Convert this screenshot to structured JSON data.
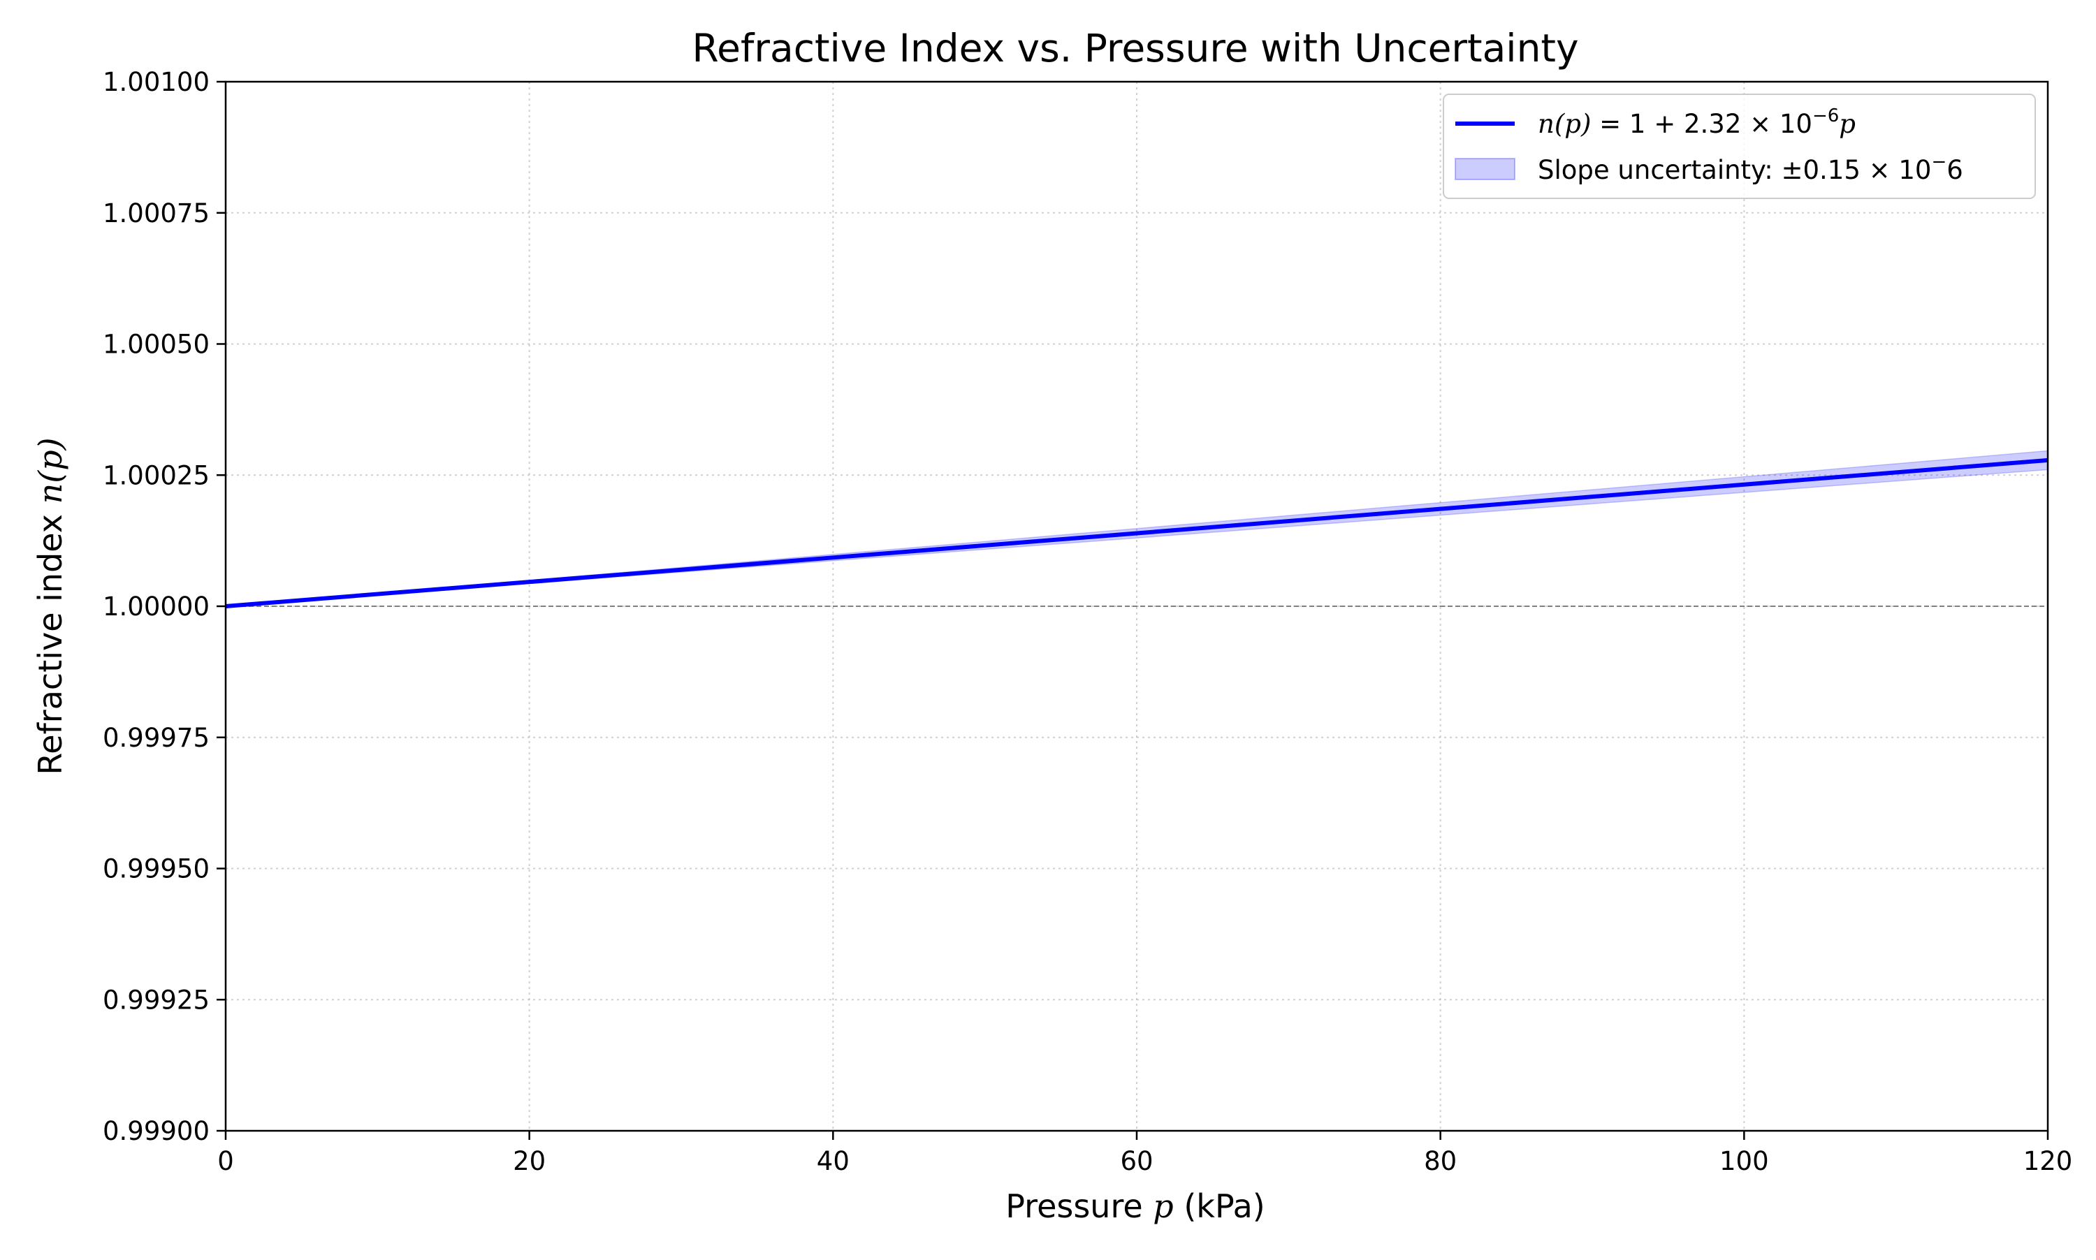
{
  "chart_data": {
    "type": "line",
    "title": "Refractive Index vs. Pressure with Uncertainty",
    "xlabel": "Pressure p (kPa)",
    "xlabel_parts": {
      "before": "Pressure ",
      "var": "p",
      "after": " (kPa)"
    },
    "ylabel": "Refractive index n(p)",
    "ylabel_parts": {
      "before": "Refractive index ",
      "var": "n(p)",
      "after": ""
    },
    "xlim": [
      0,
      120
    ],
    "ylim": [
      0.999,
      1.001
    ],
    "x_ticks": [
      0,
      20,
      40,
      60,
      80,
      100,
      120
    ],
    "x_tick_labels": [
      "0",
      "20",
      "40",
      "60",
      "80",
      "100",
      "120"
    ],
    "y_ticks": [
      0.999,
      0.99925,
      0.9995,
      0.99975,
      1.0,
      1.00025,
      1.0005,
      1.00075,
      1.001
    ],
    "y_tick_labels": [
      "0.99900",
      "0.99925",
      "0.99950",
      "0.99975",
      "1.00000",
      "1.00025",
      "1.00050",
      "1.00075",
      "1.00100"
    ],
    "grid": true,
    "reference_line": {
      "y": 1.0,
      "style": "dashed",
      "color": "#808080"
    },
    "legend_position": "top-right",
    "series": [
      {
        "name": "n(p) = 1 + 2.32 × 10⁻⁶p",
        "kind": "line",
        "color": "#0000ff",
        "x": [
          0,
          20,
          40,
          60,
          80,
          100,
          120
        ],
        "y": [
          1.0,
          1.0000464,
          1.0000928,
          1.0001392,
          1.0001856,
          1.000232,
          1.0002784
        ]
      },
      {
        "name": "Slope uncertainty: ±0.15 × 10⁻6",
        "kind": "band",
        "color": "#0000ff",
        "x": [
          0,
          20,
          40,
          60,
          80,
          100,
          120
        ],
        "y_lower": [
          1.0,
          1.0000434,
          1.0000868,
          1.0001302,
          1.0001736,
          1.000217,
          1.0002604
        ],
        "y_upper": [
          1.0,
          1.0000494,
          1.0000988,
          1.0001482,
          1.0001976,
          1.000247,
          1.0002964
        ]
      }
    ]
  },
  "legend": {
    "line_label": "n(p) = 1 + 2.32 × 10⁻⁶p",
    "line_label_parts": {
      "np": "n(p)",
      "mid": " = 1 + 2.32 × 10",
      "exp": "−6",
      "p": "p"
    },
    "band_label": "Slope uncertainty: ±0.15 × 10⁻6",
    "band_label_parts": {
      "text": "Slope uncertainty: ±0.15 × 10",
      "exp": "−",
      "tail": "6"
    }
  }
}
